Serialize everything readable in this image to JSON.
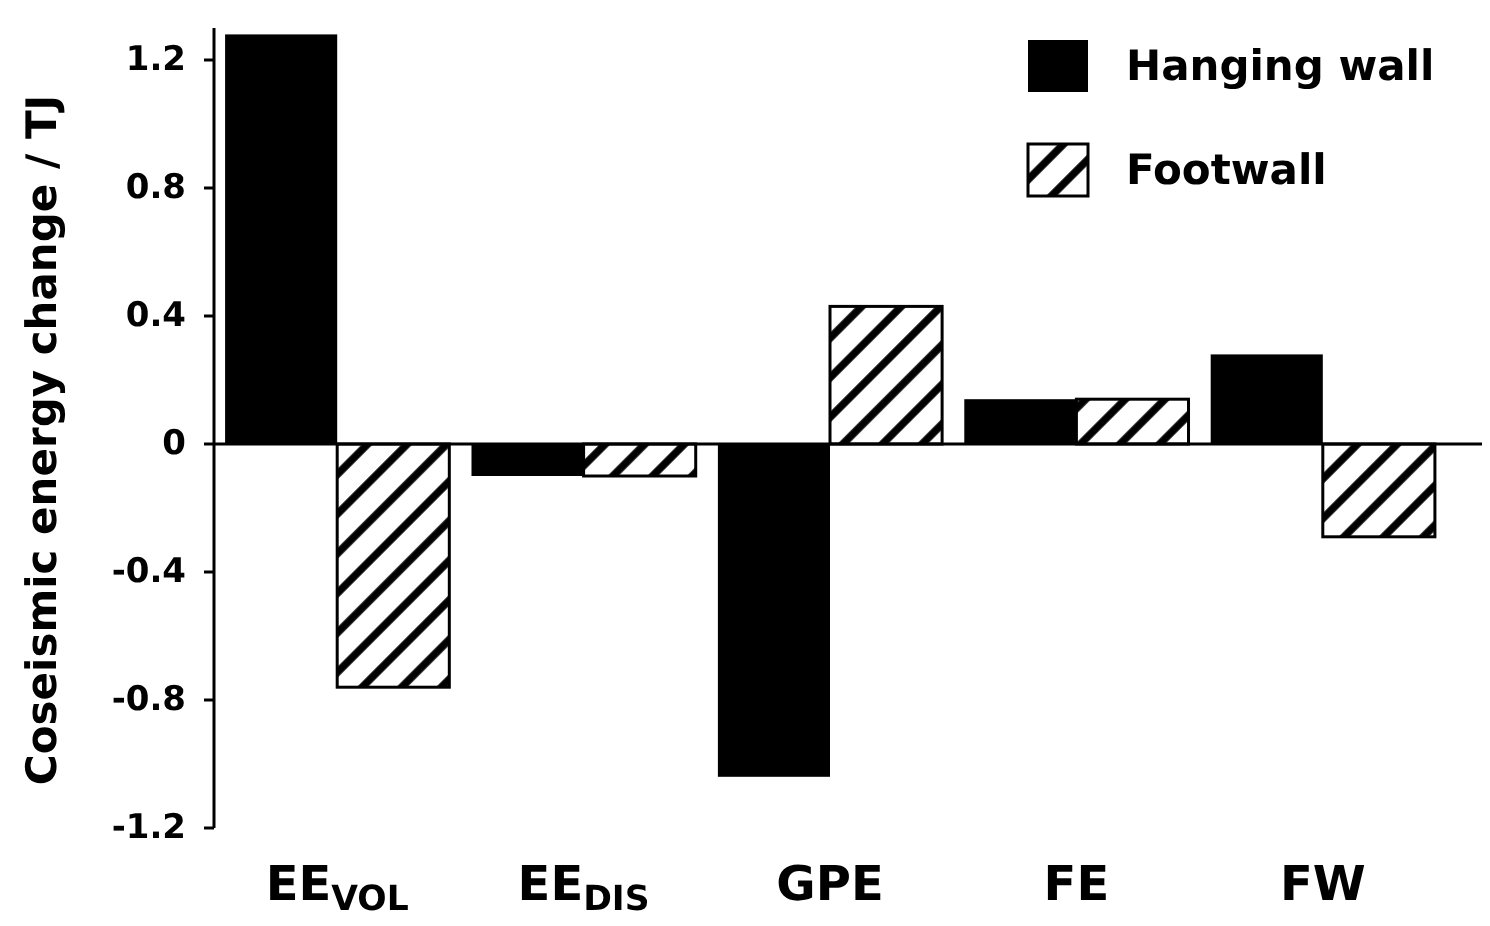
{
  "chart_data": {
    "type": "bar",
    "ylabel": "Coseismic energy change / TJ",
    "categories": [
      "EE$_{VOL}$",
      "EE$_{DIS}$",
      "GPE",
      "FE",
      "FW"
    ],
    "series": [
      {
        "name": "Hanging wall",
        "color": "#000000",
        "values": [
          1.28,
          -0.1,
          -1.04,
          0.14,
          0.28
        ]
      },
      {
        "name": "Footwall",
        "color": "#000000",
        "values": [
          -0.76,
          -0.1,
          0.43,
          0.14,
          -0.29
        ]
      }
    ],
    "ylim": [
      -1.2,
      1.3
    ],
    "yticks": [
      -1.2,
      -0.8,
      -0.4,
      0,
      0.4,
      0.8,
      1.2
    ],
    "legend": "top right"
  }
}
